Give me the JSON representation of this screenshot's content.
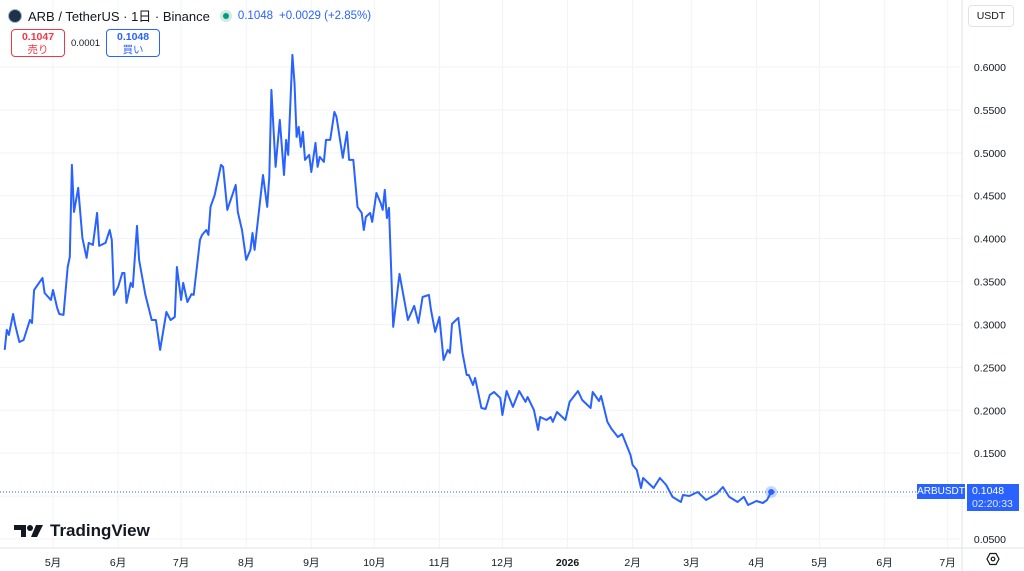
{
  "header": {
    "symbol_title": "ARB / TetherUS · 1日 · Binance",
    "last_price": "0.1048",
    "change": "+0.0029 (+2.85%)",
    "market_status_color": "#089981"
  },
  "quotes": {
    "sell_price": "0.1047",
    "sell_label": "売り",
    "spread": "0.0001",
    "buy_price": "0.1048",
    "buy_label": "買い"
  },
  "currency_button": "USDT",
  "price_tag": {
    "symbol": "ARBUSDT",
    "price": "0.1048",
    "countdown": "02:20:33"
  },
  "logo_text": "TradingView",
  "icons": {
    "symbol": "arbitrum-logo-icon",
    "settings": "settings-hexagon-icon",
    "logo": "tradingview-logo-icon"
  },
  "colors": {
    "line": "#2962ff",
    "accent": "#2962ff",
    "sell": "#f23645",
    "grid": "#f0f3fa"
  },
  "chart_data": {
    "type": "line",
    "title": "",
    "ylim": [
      0.05,
      0.6
    ],
    "y_ticks": [
      "0.6000",
      "0.5500",
      "0.5000",
      "0.4500",
      "0.4000",
      "0.3500",
      "0.3000",
      "0.2500",
      "0.2000",
      "0.1500",
      "0.0500"
    ],
    "x_ticks": [
      {
        "date": "2025-05-01",
        "label": "5月"
      },
      {
        "date": "2025-06-01",
        "label": "6月"
      },
      {
        "date": "2025-07-01",
        "label": "7月"
      },
      {
        "date": "2025-08-01",
        "label": "8月"
      },
      {
        "date": "2025-09-01",
        "label": "9月"
      },
      {
        "date": "2025-10-01",
        "label": "10月"
      },
      {
        "date": "2025-11-01",
        "label": "11月"
      },
      {
        "date": "2025-12-01",
        "label": "12月"
      },
      {
        "date": "2026-01-01",
        "label": "2026",
        "bold": true
      },
      {
        "date": "2026-02-01",
        "label": "2月"
      },
      {
        "date": "2026-03-01",
        "label": "3月"
      },
      {
        "date": "2026-04-01",
        "label": "4月"
      },
      {
        "date": "2026-05-01",
        "label": "5月"
      },
      {
        "date": "2026-06-01",
        "label": "6月"
      },
      {
        "date": "2026-07-01",
        "label": "7月"
      }
    ],
    "grid": true,
    "series": [
      {
        "points": [
          [
            "2025-04-08",
            0.2703
          ],
          [
            "2025-04-09",
            0.2936
          ],
          [
            "2025-04-10",
            0.2878
          ],
          [
            "2025-04-12",
            0.3122
          ],
          [
            "2025-04-13",
            0.2994
          ],
          [
            "2025-04-15",
            0.2796
          ],
          [
            "2025-04-17",
            0.2819
          ],
          [
            "2025-04-20",
            0.3052
          ],
          [
            "2025-04-21",
            0.3017
          ],
          [
            "2025-04-22",
            0.3402
          ],
          [
            "2025-04-26",
            0.3542
          ],
          [
            "2025-04-27",
            0.3367
          ],
          [
            "2025-04-30",
            0.3285
          ],
          [
            "2025-05-01",
            0.3402
          ],
          [
            "2025-05-03",
            0.3192
          ],
          [
            "2025-05-04",
            0.3122
          ],
          [
            "2025-05-06",
            0.3111
          ],
          [
            "2025-05-08",
            0.367
          ],
          [
            "2025-05-09",
            0.3787
          ],
          [
            "2025-05-10",
            0.4859
          ],
          [
            "2025-05-11",
            0.4311
          ],
          [
            "2025-05-13",
            0.4591
          ],
          [
            "2025-05-15",
            0.4008
          ],
          [
            "2025-05-17",
            0.3775
          ],
          [
            "2025-05-18",
            0.395
          ],
          [
            "2025-05-20",
            0.3927
          ],
          [
            "2025-05-22",
            0.43
          ],
          [
            "2025-05-23",
            0.3915
          ],
          [
            "2025-05-26",
            0.395
          ],
          [
            "2025-05-28",
            0.4101
          ],
          [
            "2025-05-29",
            0.3985
          ],
          [
            "2025-05-30",
            0.3344
          ],
          [
            "2025-06-01",
            0.3437
          ],
          [
            "2025-06-03",
            0.36
          ],
          [
            "2025-06-04",
            0.36
          ],
          [
            "2025-06-05",
            0.3251
          ],
          [
            "2025-06-07",
            0.3484
          ],
          [
            "2025-06-08",
            0.3437
          ],
          [
            "2025-06-10",
            0.4148
          ],
          [
            "2025-06-11",
            0.3752
          ],
          [
            "2025-06-14",
            0.3344
          ],
          [
            "2025-06-17",
            0.3052
          ],
          [
            "2025-06-19",
            0.3052
          ],
          [
            "2025-06-21",
            0.2703
          ],
          [
            "2025-06-24",
            0.3146
          ],
          [
            "2025-06-26",
            0.3052
          ],
          [
            "2025-06-28",
            0.3087
          ],
          [
            "2025-06-29",
            0.367
          ],
          [
            "2025-07-01",
            0.3285
          ],
          [
            "2025-07-02",
            0.3484
          ],
          [
            "2025-07-04",
            0.3262
          ],
          [
            "2025-07-06",
            0.3355
          ],
          [
            "2025-07-07",
            0.3344
          ],
          [
            "2025-07-10",
            0.3985
          ],
          [
            "2025-07-11",
            0.4043
          ],
          [
            "2025-07-13",
            0.4101
          ],
          [
            "2025-07-14",
            0.4043
          ],
          [
            "2025-07-15",
            0.437
          ],
          [
            "2025-07-17",
            0.4509
          ],
          [
            "2025-07-20",
            0.4859
          ],
          [
            "2025-07-21",
            0.4836
          ],
          [
            "2025-07-23",
            0.4335
          ],
          [
            "2025-07-27",
            0.4626
          ],
          [
            "2025-07-28",
            0.4311
          ],
          [
            "2025-07-30",
            0.4101
          ],
          [
            "2025-08-01",
            0.3752
          ],
          [
            "2025-08-03",
            0.3869
          ],
          [
            "2025-08-04",
            0.4066
          ],
          [
            "2025-08-05",
            0.3869
          ],
          [
            "2025-08-09",
            0.4742
          ],
          [
            "2025-08-11",
            0.437
          ],
          [
            "2025-08-12",
            0.4719
          ],
          [
            "2025-08-13",
            0.5733
          ],
          [
            "2025-08-15",
            0.4836
          ],
          [
            "2025-08-17",
            0.5384
          ],
          [
            "2025-08-19",
            0.4742
          ],
          [
            "2025-08-20",
            0.515
          ],
          [
            "2025-08-21",
            0.4976
          ],
          [
            "2025-08-23",
            0.6141
          ],
          [
            "2025-08-24",
            0.5815
          ],
          [
            "2025-08-25",
            0.5185
          ],
          [
            "2025-08-26",
            0.5302
          ],
          [
            "2025-08-27",
            0.5069
          ],
          [
            "2025-08-28",
            0.5244
          ],
          [
            "2025-08-29",
            0.4917
          ],
          [
            "2025-08-31",
            0.4976
          ],
          [
            "2025-09-01",
            0.4777
          ],
          [
            "2025-09-03",
            0.5115
          ],
          [
            "2025-09-04",
            0.4836
          ],
          [
            "2025-09-05",
            0.4952
          ],
          [
            "2025-09-07",
            0.4894
          ],
          [
            "2025-09-08",
            0.515
          ],
          [
            "2025-09-10",
            0.515
          ],
          [
            "2025-09-12",
            0.5477
          ],
          [
            "2025-09-13",
            0.5418
          ],
          [
            "2025-09-16",
            0.4941
          ],
          [
            "2025-09-18",
            0.5244
          ],
          [
            "2025-09-19",
            0.4917
          ],
          [
            "2025-09-21",
            0.4917
          ],
          [
            "2025-09-23",
            0.437
          ],
          [
            "2025-09-25",
            0.43
          ],
          [
            "2025-09-26",
            0.4101
          ],
          [
            "2025-09-27",
            0.4253
          ],
          [
            "2025-09-29",
            0.43
          ],
          [
            "2025-09-30",
            0.4195
          ],
          [
            "2025-10-02",
            0.4532
          ],
          [
            "2025-10-04",
            0.4416
          ],
          [
            "2025-10-05",
            0.4335
          ],
          [
            "2025-10-06",
            0.4568
          ],
          [
            "2025-10-07",
            0.4241
          ],
          [
            "2025-10-08",
            0.4358
          ],
          [
            "2025-10-09",
            0.3659
          ],
          [
            "2025-10-10",
            0.2971
          ],
          [
            "2025-10-13",
            0.3589
          ],
          [
            "2025-10-17",
            0.3052
          ],
          [
            "2025-10-20",
            0.3216
          ],
          [
            "2025-10-22",
            0.3017
          ],
          [
            "2025-10-24",
            0.332
          ],
          [
            "2025-10-27",
            0.3344
          ],
          [
            "2025-10-28",
            0.3169
          ],
          [
            "2025-10-30",
            0.2913
          ],
          [
            "2025-11-01",
            0.3087
          ],
          [
            "2025-11-03",
            0.2586
          ],
          [
            "2025-11-05",
            0.2703
          ],
          [
            "2025-11-06",
            0.2668
          ],
          [
            "2025-11-07",
            0.3006
          ],
          [
            "2025-11-10",
            0.3076
          ],
          [
            "2025-11-12",
            0.2668
          ],
          [
            "2025-11-14",
            0.2411
          ],
          [
            "2025-11-15",
            0.2411
          ],
          [
            "2025-11-17",
            0.2295
          ],
          [
            "2025-11-18",
            0.2377
          ],
          [
            "2025-11-21",
            0.2027
          ],
          [
            "2025-11-23",
            0.2015
          ],
          [
            "2025-11-25",
            0.2179
          ],
          [
            "2025-11-27",
            0.2213
          ],
          [
            "2025-11-30",
            0.2143
          ],
          [
            "2025-12-01",
            0.1945
          ],
          [
            "2025-12-03",
            0.2225
          ],
          [
            "2025-12-06",
            0.2039
          ],
          [
            "2025-12-09",
            0.2225
          ],
          [
            "2025-12-12",
            0.2097
          ],
          [
            "2025-12-13",
            0.2155
          ],
          [
            "2025-12-16",
            0.2004
          ],
          [
            "2025-12-18",
            0.1771
          ],
          [
            "2025-12-19",
            0.1922
          ],
          [
            "2025-12-22",
            0.1887
          ],
          [
            "2025-12-24",
            0.1922
          ],
          [
            "2025-12-25",
            0.1864
          ],
          [
            "2025-12-27",
            0.198
          ],
          [
            "2025-12-31",
            0.1887
          ],
          [
            "2026-01-02",
            0.2097
          ],
          [
            "2026-01-06",
            0.2225
          ],
          [
            "2026-01-08",
            0.212
          ],
          [
            "2026-01-12",
            0.2027
          ],
          [
            "2026-01-13",
            0.2213
          ],
          [
            "2026-01-16",
            0.2108
          ],
          [
            "2026-01-17",
            0.2166
          ],
          [
            "2026-01-20",
            0.1864
          ],
          [
            "2026-01-22",
            0.1782
          ],
          [
            "2026-01-25",
            0.1689
          ],
          [
            "2026-01-27",
            0.1724
          ],
          [
            "2026-01-31",
            0.1479
          ],
          [
            "2026-02-01",
            0.1363
          ],
          [
            "2026-02-03",
            0.1304
          ],
          [
            "2026-02-05",
            0.1094
          ],
          [
            "2026-02-06",
            0.1211
          ],
          [
            "2026-02-11",
            0.1094
          ],
          [
            "2026-02-14",
            0.1211
          ],
          [
            "2026-02-17",
            0.1129
          ],
          [
            "2026-02-20",
            0.099
          ],
          [
            "2026-02-24",
            0.0931
          ],
          [
            "2026-02-25",
            0.1013
          ],
          [
            "2026-02-28",
            0.1001
          ],
          [
            "2026-03-04",
            0.1048
          ],
          [
            "2026-03-08",
            0.0955
          ],
          [
            "2026-03-13",
            0.1025
          ],
          [
            "2026-03-16",
            0.1106
          ],
          [
            "2026-03-19",
            0.099
          ],
          [
            "2026-03-23",
            0.0931
          ],
          [
            "2026-03-26",
            0.099
          ],
          [
            "2026-03-28",
            0.0896
          ],
          [
            "2026-04-01",
            0.0943
          ],
          [
            "2026-04-04",
            0.092
          ],
          [
            "2026-04-06",
            0.0955
          ],
          [
            "2026-04-08",
            0.1048
          ]
        ]
      }
    ],
    "last_value": 0.1048
  }
}
